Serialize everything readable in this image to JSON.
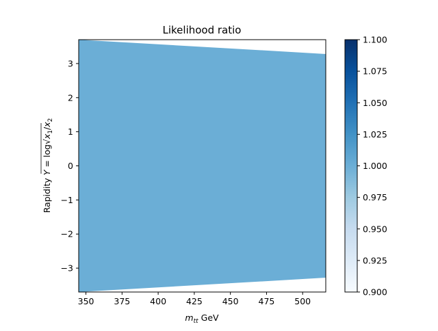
{
  "chart_data": {
    "type": "heatmap",
    "title": "Likelihood ratio",
    "xlabel": {
      "symbol": "m",
      "subscript": "tt",
      "unit": " GeV"
    },
    "ylabel": {
      "prefix": "Rapidity ",
      "symbol": "Y",
      "equals": " = log",
      "x1": "x",
      "x1sub": "1",
      "slash": "/",
      "x2": "x",
      "x2sub": "2"
    },
    "xlim": [
      345,
      516
    ],
    "ylim": [
      -3.7,
      3.7
    ],
    "x_ticks": [
      350,
      375,
      400,
      425,
      450,
      475,
      500
    ],
    "x_tick_labels": [
      "350",
      "375",
      "400",
      "425",
      "450",
      "475",
      "500"
    ],
    "y_ticks": [
      3,
      2,
      1,
      0,
      -1,
      -2,
      -3
    ],
    "y_tick_labels": [
      "3",
      "2",
      "1",
      "0",
      "−1",
      "−2",
      "−3"
    ],
    "region": {
      "description_value": 1.0,
      "color": "#6baed6",
      "upper_boundary": [
        [
          345,
          3.7
        ],
        [
          516,
          3.28
        ]
      ],
      "lower_boundary": [
        [
          345,
          -3.7
        ],
        [
          516,
          -3.28
        ]
      ]
    },
    "colorbar": {
      "colormap": "Blues",
      "vmin": 0.9,
      "vmax": 1.1,
      "ticks": [
        0.9,
        0.925,
        0.95,
        0.975,
        1.0,
        1.025,
        1.05,
        1.075,
        1.1
      ],
      "tick_labels": [
        "0.900",
        "0.925",
        "0.950",
        "0.975",
        "1.000",
        "1.025",
        "1.050",
        "1.075",
        "1.100"
      ],
      "colors": [
        "#f7fbff",
        "#deebf7",
        "#c6dbef",
        "#9ecae1",
        "#6baed6",
        "#4292c6",
        "#2171b5",
        "#08519c",
        "#08306b"
      ]
    }
  }
}
